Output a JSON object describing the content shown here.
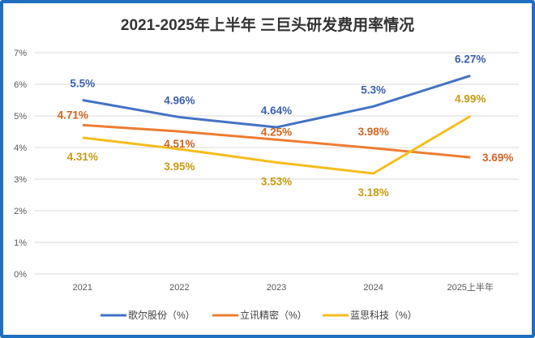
{
  "chart_data": {
    "type": "line",
    "title": "2021-2025年上半年 三巨头研发费用率情况",
    "categories": [
      "2021",
      "2022",
      "2023",
      "2024",
      "2025上半年"
    ],
    "ylim": [
      0,
      7
    ],
    "yticks": [
      "0%",
      "1%",
      "2%",
      "3%",
      "4%",
      "5%",
      "6%",
      "7%"
    ],
    "grid": true,
    "legend_position": "bottom",
    "series": [
      {
        "name": "歌尔股份（%）",
        "color": "#4472c4",
        "label_color": "#3a5fae",
        "values": [
          5.5,
          4.96,
          4.64,
          5.3,
          6.27
        ],
        "labels": [
          "5.5%",
          "4.96%",
          "4.64%",
          "5.3%",
          "6.27%"
        ]
      },
      {
        "name": "立讯精密（%）",
        "color": "#ed7d31",
        "label_color": "#d0641e",
        "values": [
          4.71,
          4.51,
          4.25,
          3.98,
          3.69
        ],
        "labels": [
          "4.71%",
          "4.51%",
          "4.25%",
          "3.98%",
          "3.69%"
        ]
      },
      {
        "name": "蓝思科技（%）",
        "color": "#f5bd1c",
        "label_color": "#c99a10",
        "values": [
          4.31,
          3.95,
          3.53,
          3.18,
          4.99
        ],
        "labels": [
          "4.31%",
          "3.95%",
          "3.53%",
          "3.18%",
          "4.99%"
        ]
      }
    ]
  }
}
